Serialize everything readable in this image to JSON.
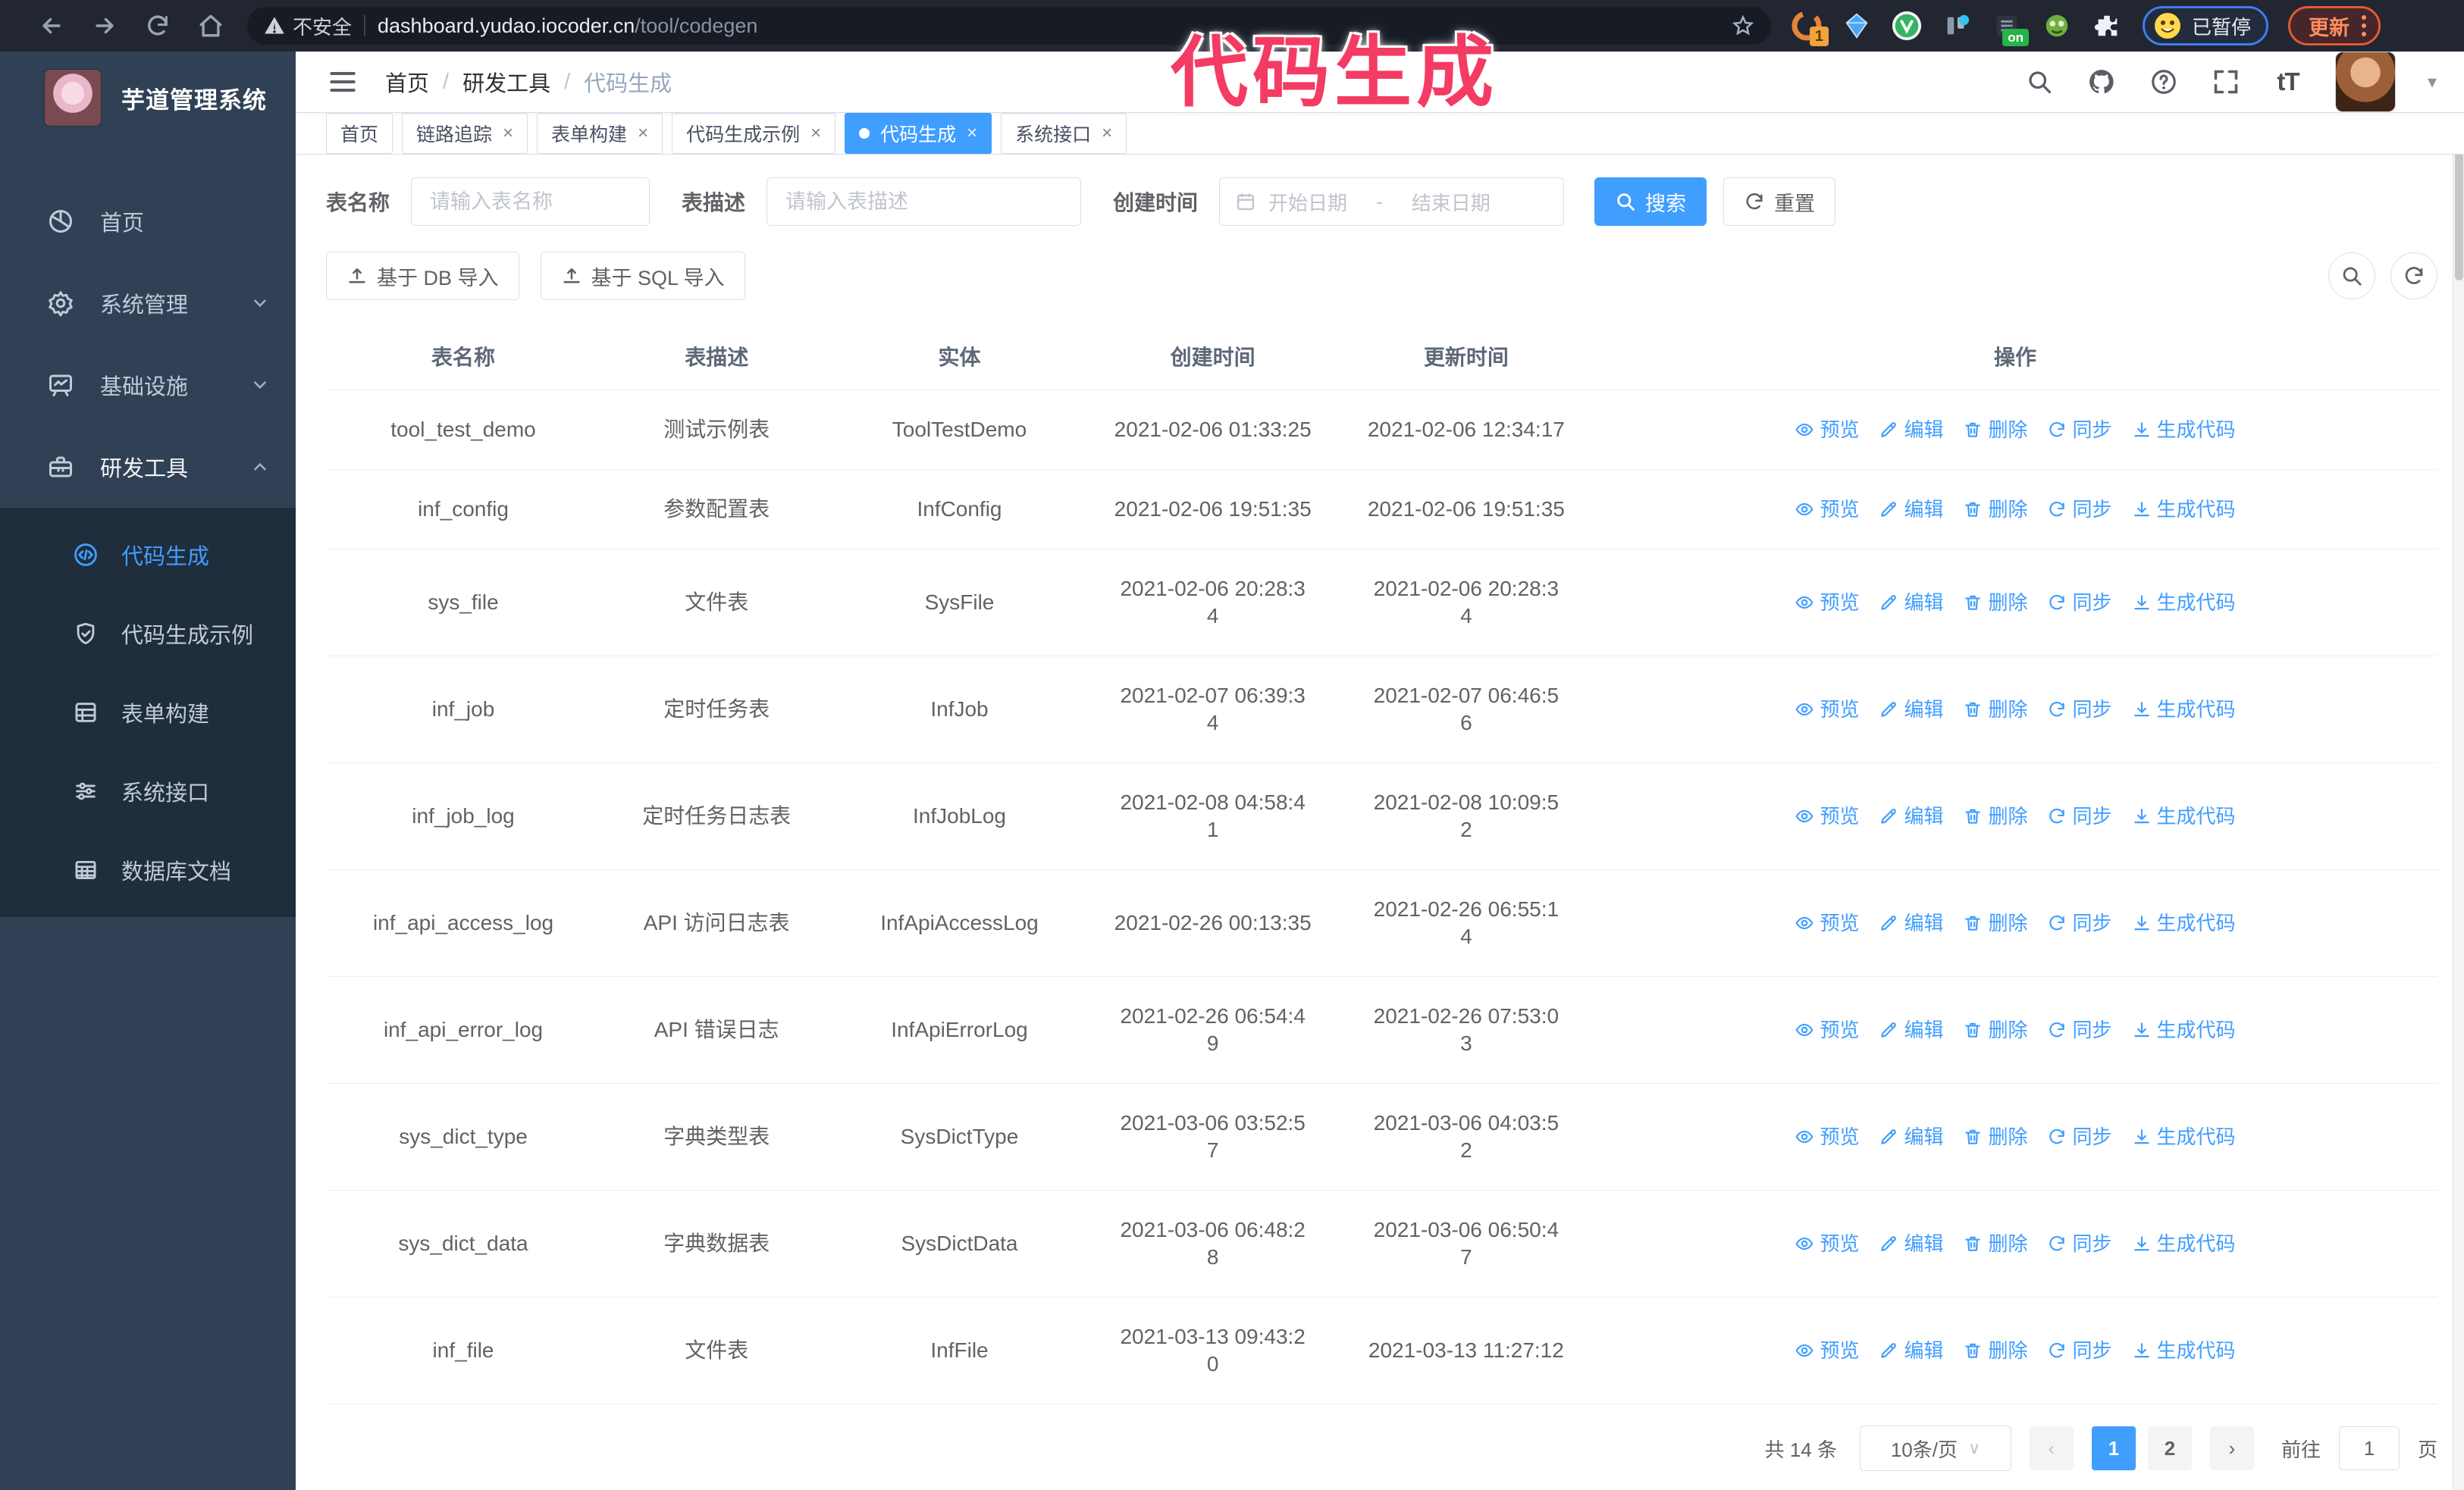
{
  "browser": {
    "insecure_label": "不安全",
    "url_host": "dashboard.yudao.iocoder.cn",
    "url_path": "/tool/codegen",
    "ext_badge_count": "1",
    "ext_on_badge": "on",
    "paused_label": "已暂停",
    "update_label": "更新"
  },
  "annotation": {
    "text": "代码生成",
    "color": "#f43b63"
  },
  "sidebar": {
    "title": "芋道管理系统",
    "items": [
      {
        "label": "首页",
        "icon": "dashboard-icon",
        "expandable": false,
        "expanded": false
      },
      {
        "label": "系统管理",
        "icon": "gear-icon",
        "expandable": true,
        "expanded": false
      },
      {
        "label": "基础设施",
        "icon": "monitor-icon",
        "expandable": true,
        "expanded": false
      },
      {
        "label": "研发工具",
        "icon": "toolbox-icon",
        "expandable": true,
        "expanded": true
      }
    ],
    "subitems": [
      {
        "label": "代码生成",
        "icon": "code-icon",
        "active": true
      },
      {
        "label": "代码生成示例",
        "icon": "badge-check-icon",
        "active": false
      },
      {
        "label": "表单构建",
        "icon": "form-icon",
        "active": false
      },
      {
        "label": "系统接口",
        "icon": "sliders-icon",
        "active": false
      },
      {
        "label": "数据库文档",
        "icon": "db-table-icon",
        "active": false
      }
    ]
  },
  "header": {
    "breadcrumb": [
      "首页",
      "研发工具",
      "代码生成"
    ],
    "breadcrumb_sep": "/"
  },
  "tabs": [
    {
      "label": "首页",
      "closable": false,
      "active": false
    },
    {
      "label": "链路追踪",
      "closable": true,
      "active": false
    },
    {
      "label": "表单构建",
      "closable": true,
      "active": false
    },
    {
      "label": "代码生成示例",
      "closable": true,
      "active": false
    },
    {
      "label": "代码生成",
      "closable": true,
      "active": true
    },
    {
      "label": "系统接口",
      "closable": true,
      "active": false
    }
  ],
  "filters": {
    "name_label": "表名称",
    "name_placeholder": "请输入表名称",
    "desc_label": "表描述",
    "desc_placeholder": "请输入表描述",
    "time_label": "创建时间",
    "start_placeholder": "开始日期",
    "range_separator": "-",
    "end_placeholder": "结束日期",
    "search_label": "搜索",
    "reset_label": "重置"
  },
  "toolbar": {
    "import_db_label": "基于 DB 导入",
    "import_sql_label": "基于 SQL 导入"
  },
  "table": {
    "headers": [
      "表名称",
      "表描述",
      "实体",
      "创建时间",
      "更新时间",
      "操作"
    ],
    "action_labels": [
      "预览",
      "编辑",
      "删除",
      "同步",
      "生成代码"
    ],
    "rows": [
      {
        "name": "tool_test_demo",
        "desc": "测试示例表",
        "entity": "ToolTestDemo",
        "created": "2021-02-06 01:33:25",
        "updated": "2021-02-06 12:34:17"
      },
      {
        "name": "inf_config",
        "desc": "参数配置表",
        "entity": "InfConfig",
        "created": "2021-02-06 19:51:35",
        "updated": "2021-02-06 19:51:35"
      },
      {
        "name": "sys_file",
        "desc": "文件表",
        "entity": "SysFile",
        "created": "2021-02-06 20:28:3\n4",
        "updated": "2021-02-06 20:28:3\n4"
      },
      {
        "name": "inf_job",
        "desc": "定时任务表",
        "entity": "InfJob",
        "created": "2021-02-07 06:39:3\n4",
        "updated": "2021-02-07 06:46:5\n6"
      },
      {
        "name": "inf_job_log",
        "desc": "定时任务日志表",
        "entity": "InfJobLog",
        "created": "2021-02-08 04:58:4\n1",
        "updated": "2021-02-08 10:09:5\n2"
      },
      {
        "name": "inf_api_access_log",
        "desc": "API 访问日志表",
        "entity": "InfApiAccessLog",
        "created": "2021-02-26 00:13:35",
        "updated": "2021-02-26 06:55:1\n4"
      },
      {
        "name": "inf_api_error_log",
        "desc": "API 错误日志",
        "entity": "InfApiErrorLog",
        "created": "2021-02-26 06:54:4\n9",
        "updated": "2021-02-26 07:53:0\n3"
      },
      {
        "name": "sys_dict_type",
        "desc": "字典类型表",
        "entity": "SysDictType",
        "created": "2021-03-06 03:52:5\n7",
        "updated": "2021-03-06 04:03:5\n2"
      },
      {
        "name": "sys_dict_data",
        "desc": "字典数据表",
        "entity": "SysDictData",
        "created": "2021-03-06 06:48:2\n8",
        "updated": "2021-03-06 06:50:4\n7"
      },
      {
        "name": "inf_file",
        "desc": "文件表",
        "entity": "InfFile",
        "created": "2021-03-13 09:43:2\n0",
        "updated": "2021-03-13 11:27:12"
      }
    ]
  },
  "pagination": {
    "total_label": "共 14 条",
    "page_size_label": "10条/页",
    "pages": [
      "1",
      "2"
    ],
    "active_page": "1",
    "goto_label": "前往",
    "goto_value": "1",
    "page_unit_label": "页"
  },
  "colors": {
    "accent": "#409eff",
    "sidebar_bg": "#304156",
    "submenu_bg": "#1f2d3d",
    "annotation_pink": "#f43b63"
  }
}
